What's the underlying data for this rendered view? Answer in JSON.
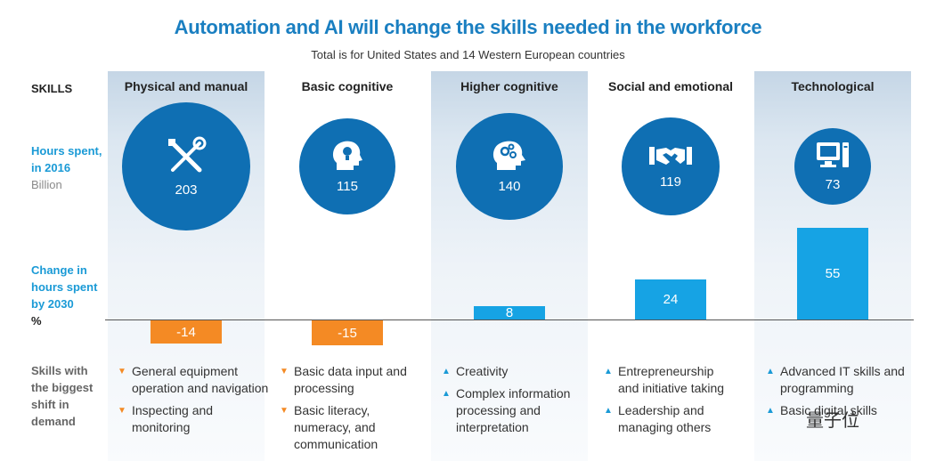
{
  "title": "Automation and AI will change the skills needed in the workforce",
  "subtitle": "Total is for United States and 14 Western European countries",
  "row_labels": {
    "skills": "SKILLS",
    "hours_line1": "Hours spent,",
    "hours_line2": "in 2016",
    "hours_unit": "Billion",
    "change_line1": "Change in",
    "change_line2": "hours spent",
    "change_line3": "by 2030",
    "change_unit": "%",
    "shift_line1": "Skills with",
    "shift_line2": "the biggest",
    "shift_line3": "shift in",
    "shift_line4": "demand"
  },
  "colors": {
    "title": "#1a7fc1",
    "circle": "#0f6fb3",
    "increase": "#16a3e4",
    "decrease": "#f48a24"
  },
  "chart_data": {
    "type": "bar",
    "categories": [
      "Physical and manual",
      "Basic cognitive",
      "Higher cognitive",
      "Social and emotional",
      "Technological"
    ],
    "hours_2016_billion": [
      203,
      115,
      140,
      119,
      73
    ],
    "change_2030_percent": [
      -14,
      -15,
      8,
      24,
      55
    ],
    "icons": [
      "tools-icon",
      "lightbulb-head-icon",
      "gears-head-icon",
      "handshake-icon",
      "computer-icon"
    ],
    "shifts": [
      {
        "direction": "down",
        "items": [
          "General equipment operation and navigation",
          "Inspecting and monitoring"
        ]
      },
      {
        "direction": "down",
        "items": [
          "Basic data input and processing",
          "Basic literacy, numeracy, and communication"
        ]
      },
      {
        "direction": "up",
        "items": [
          "Creativity",
          "Complex information processing and interpretation"
        ]
      },
      {
        "direction": "up",
        "items": [
          "Entrepreneurship and initiative taking",
          "Leadership and managing others"
        ]
      },
      {
        "direction": "up",
        "items": [
          "Advanced IT skills and programming",
          "Basic digital skills"
        ]
      }
    ]
  },
  "watermark": "量子位"
}
